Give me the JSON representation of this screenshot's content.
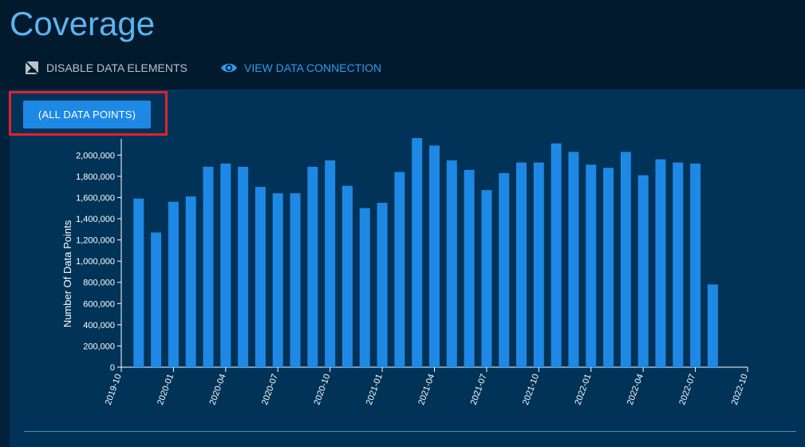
{
  "page": {
    "title": "Coverage"
  },
  "toolbar": {
    "disable_label": "DISABLE DATA ELEMENTS",
    "view_label": "VIEW DATA CONNECTION"
  },
  "filter": {
    "button_label": "(ALL DATA POINTS)"
  },
  "colors": {
    "bar": "#1e88e5",
    "accent": "#2c9cf0",
    "title": "#5ab4f0",
    "highlight": "#e5202a"
  },
  "icons": {
    "disable": "image-off-icon",
    "view": "eye-icon"
  },
  "chart_data": {
    "type": "bar",
    "ylabel": "Number Of Data Points",
    "xlabel": "",
    "ylim": [
      0,
      2100000
    ],
    "y_ticks": [
      0,
      200000,
      400000,
      600000,
      800000,
      1000000,
      1200000,
      1400000,
      1600000,
      1800000,
      2000000
    ],
    "y_tick_labels": [
      "0",
      "200,000",
      "400,000",
      "600,000",
      "800,000",
      "1,000,000",
      "1,200,000",
      "1,400,000",
      "1,600,000",
      "1,800,000",
      "2,000,000"
    ],
    "x_ticks": [
      "2019-10",
      "2020-01",
      "2020-04",
      "2020-07",
      "2020-10",
      "2021-01",
      "2021-04",
      "2021-07",
      "2021-10",
      "2022-01",
      "2022-04",
      "2022-07",
      "2022-10"
    ],
    "categories": [
      "2019-11",
      "2019-12",
      "2020-01",
      "2020-02",
      "2020-03",
      "2020-04",
      "2020-05",
      "2020-06",
      "2020-07",
      "2020-08",
      "2020-09",
      "2020-10",
      "2020-11",
      "2020-12",
      "2021-01",
      "2021-02",
      "2021-03",
      "2021-04",
      "2021-05",
      "2021-06",
      "2021-07",
      "2021-08",
      "2021-09",
      "2021-10",
      "2021-11",
      "2021-12",
      "2022-01",
      "2022-02",
      "2022-03",
      "2022-04",
      "2022-05",
      "2022-06",
      "2022-07",
      "2022-08"
    ],
    "values": [
      1590000,
      1270000,
      1560000,
      1610000,
      1890000,
      1920000,
      1890000,
      1700000,
      1640000,
      1640000,
      1890000,
      1950000,
      1710000,
      1500000,
      1550000,
      1840000,
      2160000,
      2090000,
      1950000,
      1860000,
      1670000,
      1830000,
      1930000,
      1930000,
      2110000,
      2030000,
      1910000,
      1880000,
      2030000,
      1810000,
      1960000,
      1930000,
      1920000,
      780000
    ],
    "grid": false,
    "legend": "none"
  }
}
